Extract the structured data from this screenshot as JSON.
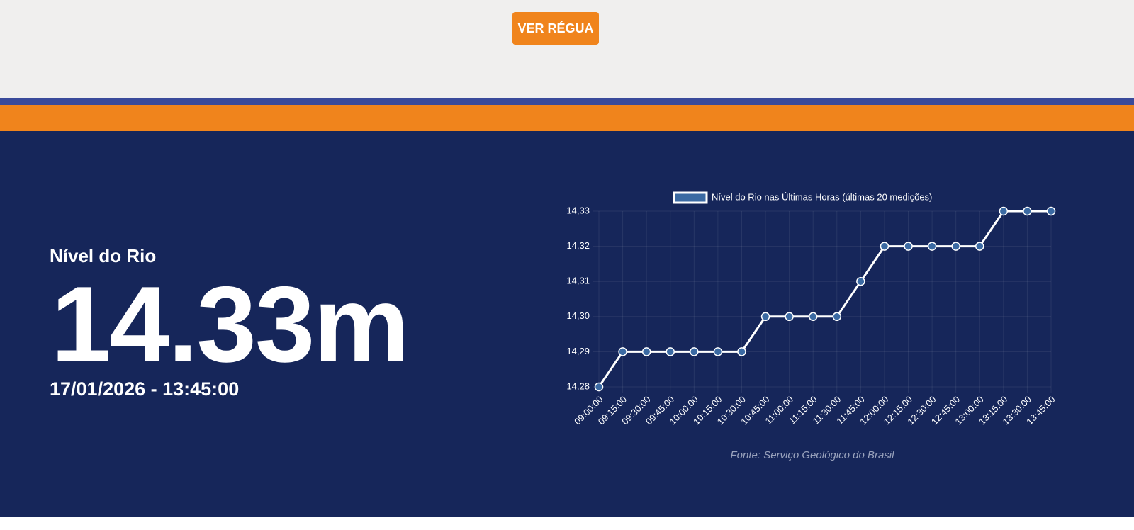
{
  "button": "VER RÉGUA",
  "level_label": "Nível do Rio",
  "level_value": "14.33m",
  "timestamp": "17/01/2026 - 13:45:00",
  "source": "Fonte: Serviço Geológico do Brasil",
  "chart_data": {
    "type": "line",
    "categories": [
      "09:00:00",
      "09:15:00",
      "09:30:00",
      "09:45:00",
      "10:00:00",
      "10:15:00",
      "10:30:00",
      "10:45:00",
      "11:00:00",
      "11:15:00",
      "11:30:00",
      "11:45:00",
      "12:00:00",
      "12:15:00",
      "12:30:00",
      "12:45:00",
      "13:00:00",
      "13:15:00",
      "13:30:00",
      "13:45:00"
    ],
    "series": [
      {
        "name": "Nível do Rio nas Últimas Horas (últimas 20 medições)",
        "color": "#ffffff",
        "marker_color": "#3b6aa3",
        "values": [
          14.28,
          14.29,
          14.29,
          14.29,
          14.29,
          14.29,
          14.29,
          14.3,
          14.3,
          14.3,
          14.3,
          14.31,
          14.32,
          14.32,
          14.32,
          14.32,
          14.32,
          14.33,
          14.33,
          14.33
        ]
      }
    ],
    "ylim": [
      14.28,
      14.33
    ],
    "yticks": [
      {
        "value": 14.28,
        "label": "14,28"
      },
      {
        "value": 14.29,
        "label": "14,29"
      },
      {
        "value": 14.3,
        "label": "14,30"
      },
      {
        "value": 14.31,
        "label": "14,31"
      },
      {
        "value": 14.32,
        "label": "14,32"
      },
      {
        "value": 14.33,
        "label": "14,33"
      }
    ],
    "grid": true
  }
}
